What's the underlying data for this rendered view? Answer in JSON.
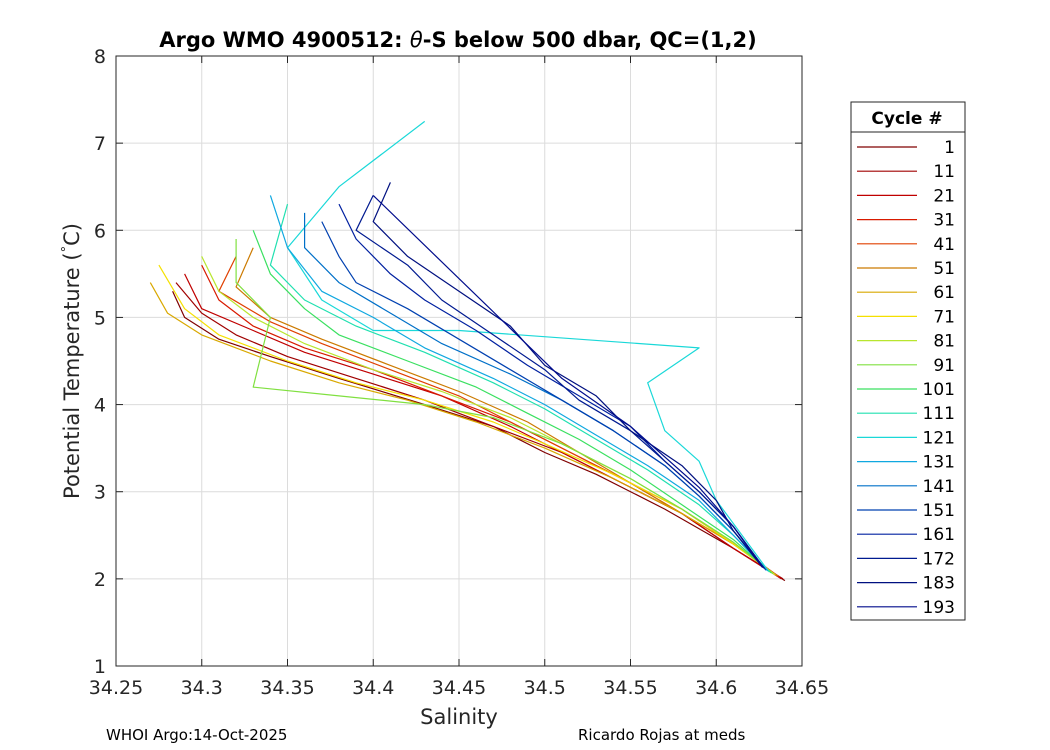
{
  "chart_data": {
    "type": "line",
    "title": {
      "prefix": "Argo WMO 4900512: ",
      "theta": "θ",
      "suffix": "-S below 500 dbar,  QC=(1,2)"
    },
    "xlabel": "Salinity",
    "ylabel": {
      "prefix": "Potential Temperature (",
      "degree": "°",
      "suffix": "C)"
    },
    "xlim": [
      34.25,
      34.65
    ],
    "ylim": [
      1,
      8
    ],
    "xticks": [
      "34.25",
      "34.3",
      "34.35",
      "34.4",
      "34.45",
      "34.5",
      "34.55",
      "34.6",
      "34.65"
    ],
    "yticks": [
      "1",
      "2",
      "3",
      "4",
      "5",
      "6",
      "7",
      "8"
    ],
    "grid": true,
    "legend": {
      "title": "Cycle #",
      "position": "right-outside",
      "entries": [
        {
          "label": "1",
          "color": "#800000"
        },
        {
          "label": "11",
          "color": "#a00000"
        },
        {
          "label": "21",
          "color": "#c00000"
        },
        {
          "label": "31",
          "color": "#d81a00"
        },
        {
          "label": "41",
          "color": "#e04000"
        },
        {
          "label": "51",
          "color": "#cc7a00"
        },
        {
          "label": "61",
          "color": "#d9a800"
        },
        {
          "label": "71",
          "color": "#f5e000"
        },
        {
          "label": "81",
          "color": "#b8e62e"
        },
        {
          "label": "91",
          "color": "#80e040"
        },
        {
          "label": "101",
          "color": "#3ae060"
        },
        {
          "label": "111",
          "color": "#20e0b0"
        },
        {
          "label": "121",
          "color": "#1ad8d8"
        },
        {
          "label": "131",
          "color": "#10a8e0"
        },
        {
          "label": "141",
          "color": "#0070c8"
        },
        {
          "label": "151",
          "color": "#0040b0"
        },
        {
          "label": "161",
          "color": "#0020a0"
        },
        {
          "label": "172",
          "color": "#001a90"
        },
        {
          "label": "183",
          "color": "#001080"
        },
        {
          "label": "193",
          "color": "#000c8c"
        }
      ]
    },
    "series": [
      {
        "name": "1",
        "x": [
          34.283,
          34.29,
          34.31,
          34.34,
          34.38,
          34.43,
          34.47,
          34.5,
          34.53,
          34.57,
          34.61,
          34.64
        ],
        "y": [
          5.3,
          5.0,
          4.75,
          4.55,
          4.3,
          4.0,
          3.75,
          3.45,
          3.2,
          2.8,
          2.35,
          1.98
        ]
      },
      {
        "name": "11",
        "x": [
          34.285,
          34.3,
          34.32,
          34.35,
          34.39,
          34.43,
          34.47,
          34.51,
          34.54,
          34.58,
          34.61,
          34.639
        ],
        "y": [
          5.4,
          5.05,
          4.8,
          4.55,
          4.3,
          4.05,
          3.75,
          3.45,
          3.15,
          2.75,
          2.35,
          2.0
        ]
      },
      {
        "name": "21",
        "x": [
          34.29,
          34.3,
          34.33,
          34.36,
          34.4,
          34.44,
          34.48,
          34.51,
          34.54,
          34.58,
          34.61,
          34.638
        ],
        "y": [
          5.5,
          5.1,
          4.85,
          4.6,
          4.35,
          4.1,
          3.75,
          3.45,
          3.15,
          2.75,
          2.35,
          2.0
        ]
      },
      {
        "name": "31",
        "x": [
          34.3,
          34.31,
          34.33,
          34.36,
          34.4,
          34.44,
          34.48,
          34.51,
          34.54,
          34.58,
          34.61,
          34.637
        ],
        "y": [
          5.6,
          5.2,
          4.9,
          4.65,
          4.4,
          4.1,
          3.8,
          3.5,
          3.2,
          2.8,
          2.4,
          2.02
        ]
      },
      {
        "name": "41",
        "x": [
          34.32,
          34.31,
          34.34,
          34.37,
          34.41,
          34.45,
          34.48,
          34.51,
          34.55,
          34.58,
          34.61,
          34.636
        ],
        "y": [
          5.7,
          5.3,
          4.95,
          4.7,
          4.4,
          4.1,
          3.8,
          3.5,
          3.1,
          2.75,
          2.4,
          2.03
        ]
      },
      {
        "name": "51",
        "x": [
          34.33,
          34.32,
          34.34,
          34.37,
          34.41,
          34.45,
          34.49,
          34.52,
          34.55,
          34.58,
          34.61,
          34.636
        ],
        "y": [
          5.8,
          5.35,
          5.0,
          4.75,
          4.45,
          4.15,
          3.8,
          3.45,
          3.1,
          2.75,
          2.4,
          2.03
        ]
      },
      {
        "name": "61",
        "x": [
          34.27,
          34.28,
          34.3,
          34.34,
          34.38,
          34.42,
          34.46,
          34.5,
          34.54,
          34.58,
          34.61,
          34.635
        ],
        "y": [
          5.4,
          5.05,
          4.8,
          4.5,
          4.25,
          4.05,
          3.8,
          3.5,
          3.15,
          2.75,
          2.4,
          2.04
        ]
      },
      {
        "name": "71",
        "x": [
          34.275,
          34.29,
          34.31,
          34.35,
          34.39,
          34.43,
          34.47,
          34.5,
          34.54,
          34.58,
          34.61,
          34.634
        ],
        "y": [
          5.6,
          5.1,
          4.8,
          4.5,
          4.25,
          4.05,
          3.8,
          3.55,
          3.2,
          2.8,
          2.4,
          2.05
        ]
      },
      {
        "name": "81",
        "x": [
          34.3,
          34.31,
          34.33,
          34.36,
          34.4,
          34.44,
          34.48,
          34.51,
          34.55,
          34.58,
          34.61,
          34.634
        ],
        "y": [
          5.7,
          5.3,
          5.0,
          4.7,
          4.4,
          4.15,
          3.85,
          3.55,
          3.15,
          2.8,
          2.42,
          2.05
        ]
      },
      {
        "name": "91",
        "x": [
          34.32,
          34.32,
          34.34,
          34.33,
          34.38,
          34.43,
          34.47,
          34.51,
          34.55,
          34.58,
          34.61,
          34.633
        ],
        "y": [
          5.9,
          5.4,
          5.0,
          4.2,
          4.1,
          4.0,
          3.85,
          3.55,
          3.15,
          2.8,
          2.42,
          2.06
        ]
      },
      {
        "name": "101",
        "x": [
          34.33,
          34.34,
          34.36,
          34.38,
          34.42,
          34.46,
          34.49,
          34.52,
          34.55,
          34.58,
          34.61,
          34.632
        ],
        "y": [
          6.0,
          5.5,
          5.1,
          4.8,
          4.5,
          4.2,
          3.9,
          3.6,
          3.25,
          2.85,
          2.45,
          2.07
        ]
      },
      {
        "name": "111",
        "x": [
          34.35,
          34.34,
          34.36,
          34.39,
          34.43,
          34.47,
          34.5,
          34.53,
          34.56,
          34.59,
          34.61,
          34.631
        ],
        "y": [
          6.3,
          5.6,
          5.2,
          4.9,
          4.6,
          4.25,
          3.95,
          3.6,
          3.25,
          2.85,
          2.5,
          2.08
        ]
      },
      {
        "name": "121",
        "x": [
          34.43,
          34.38,
          34.35,
          34.37,
          34.4,
          34.45,
          34.59,
          34.56,
          34.57,
          34.59,
          34.6,
          34.63
        ],
        "y": [
          7.25,
          6.5,
          5.8,
          5.2,
          4.85,
          4.85,
          4.65,
          4.25,
          3.7,
          3.35,
          2.9,
          2.1
        ]
      },
      {
        "name": "131",
        "x": [
          34.34,
          34.35,
          34.37,
          34.4,
          34.43,
          34.47,
          34.5,
          34.53,
          34.56,
          34.59,
          34.61,
          34.63
        ],
        "y": [
          6.4,
          5.8,
          5.3,
          5.0,
          4.65,
          4.3,
          4.0,
          3.65,
          3.3,
          2.9,
          2.5,
          2.09
        ]
      },
      {
        "name": "141",
        "x": [
          34.36,
          34.36,
          34.38,
          34.41,
          34.44,
          34.48,
          34.51,
          34.54,
          34.57,
          34.59,
          34.61,
          34.629
        ],
        "y": [
          6.2,
          5.8,
          5.4,
          5.05,
          4.7,
          4.35,
          4.05,
          3.7,
          3.3,
          2.95,
          2.55,
          2.1
        ]
      },
      {
        "name": "151",
        "x": [
          34.37,
          34.38,
          34.39,
          34.42,
          34.45,
          34.48,
          34.51,
          34.54,
          34.57,
          34.59,
          34.61,
          34.629
        ],
        "y": [
          6.1,
          5.7,
          5.4,
          5.1,
          4.75,
          4.4,
          4.05,
          3.7,
          3.3,
          2.95,
          2.55,
          2.1
        ]
      },
      {
        "name": "161",
        "x": [
          34.38,
          34.39,
          34.41,
          34.43,
          34.46,
          34.49,
          34.52,
          34.55,
          34.57,
          34.59,
          34.61,
          34.628
        ],
        "y": [
          6.3,
          5.9,
          5.5,
          5.2,
          4.85,
          4.45,
          4.1,
          3.75,
          3.35,
          3.0,
          2.6,
          2.12
        ]
      },
      {
        "name": "172",
        "x": [
          34.4,
          34.39,
          34.42,
          34.44,
          34.47,
          34.5,
          34.52,
          34.55,
          34.57,
          34.59,
          34.61,
          34.628
        ],
        "y": [
          6.4,
          6.0,
          5.6,
          5.2,
          4.8,
          4.4,
          4.05,
          3.7,
          3.35,
          3.0,
          2.6,
          2.12
        ]
      },
      {
        "name": "183",
        "x": [
          34.41,
          34.4,
          34.42,
          34.45,
          34.48,
          34.5,
          34.53,
          34.55,
          34.58,
          34.6,
          34.61,
          34.627
        ],
        "y": [
          6.55,
          6.1,
          5.7,
          5.3,
          4.9,
          4.45,
          4.1,
          3.7,
          3.3,
          2.9,
          2.55,
          2.13
        ]
      },
      {
        "name": "193",
        "x": [
          34.4,
          34.51,
          34.55,
          34.59,
          34.61,
          34.627
        ],
        "y": [
          6.4,
          4.3,
          3.75,
          3.05,
          2.6,
          2.13
        ]
      }
    ]
  },
  "footer": {
    "left": "WHOI Argo:14-Oct-2025",
    "right": "Ricardo Rojas at meds"
  }
}
